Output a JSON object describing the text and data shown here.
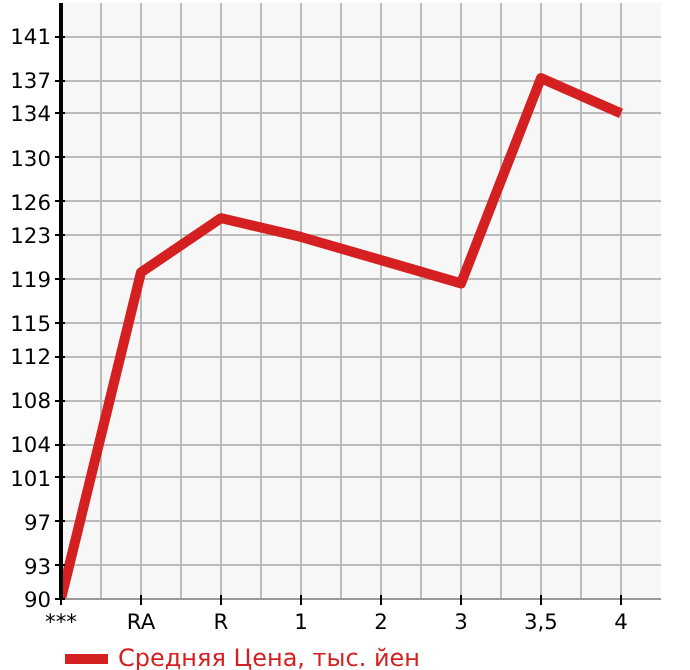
{
  "chart_data": {
    "type": "line",
    "categories": [
      "***",
      "RA",
      "R",
      "1",
      "2",
      "3",
      "3,5",
      "4"
    ],
    "series": [
      {
        "name": "Средняя Цена, тыс. йен",
        "color": "#d42020",
        "values": [
          90,
          119.6,
          124.5,
          122.8,
          120.7,
          118.6,
          137.2,
          134
        ]
      }
    ],
    "ylim": [
      90,
      144
    ],
    "yticks": [
      90,
      93,
      97,
      101,
      104,
      108,
      112,
      115,
      119,
      123,
      126,
      130,
      134,
      137,
      141
    ],
    "grid": true,
    "legend": "bottom",
    "marker": "none",
    "line_style": "solid"
  }
}
